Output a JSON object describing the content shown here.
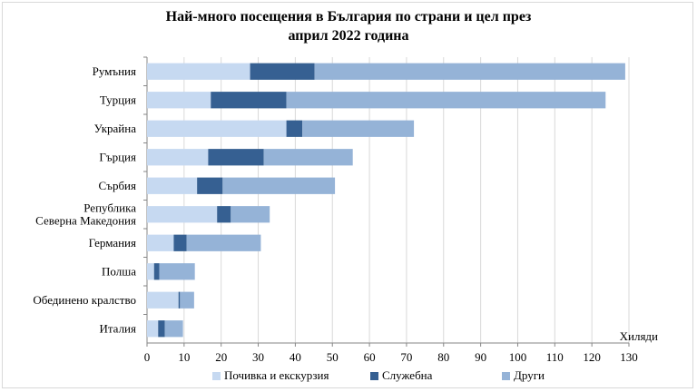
{
  "chart_data": {
    "type": "bar",
    "orientation": "horizontal",
    "stacked": true,
    "title_line1": "Най-много посещения в България по страни и цел през",
    "title_line2": "април 2022 година",
    "xlabel": "Хиляди",
    "ylabel": "",
    "xlim": [
      0,
      130
    ],
    "xticks": [
      0,
      10,
      20,
      30,
      40,
      50,
      60,
      70,
      80,
      90,
      100,
      110,
      120,
      130
    ],
    "grid": true,
    "legend_position": "bottom",
    "categories": [
      [
        "Румъния"
      ],
      [
        "Турция"
      ],
      [
        "Украйна"
      ],
      [
        "Гърция"
      ],
      [
        "Сърбия"
      ],
      [
        "Република",
        "Северна Македония"
      ],
      [
        "Германия"
      ],
      [
        "Полша"
      ],
      [
        "Обединено кралство"
      ],
      [
        "Италия"
      ]
    ],
    "series": [
      {
        "name": "Почивка и екскурзия",
        "color": "#c6d9f1",
        "values": [
          27.8,
          17.2,
          37.6,
          16.5,
          13.5,
          18.9,
          7.2,
          1.9,
          8.5,
          3.0
        ]
      },
      {
        "name": "Служебна",
        "color": "#366092",
        "values": [
          17.4,
          20.4,
          4.3,
          15.0,
          6.9,
          3.7,
          3.5,
          1.4,
          0.4,
          1.8
        ]
      },
      {
        "name": "Други",
        "color": "#95b3d7",
        "values": [
          83.8,
          86.1,
          30.1,
          24.0,
          30.3,
          10.5,
          20.0,
          9.6,
          3.8,
          4.9
        ]
      }
    ]
  }
}
